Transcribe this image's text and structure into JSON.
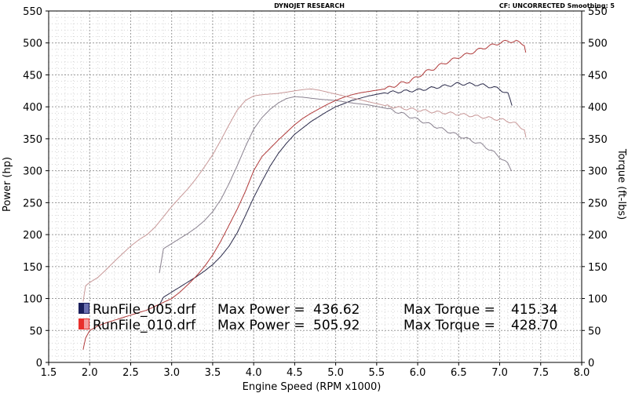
{
  "chart_data": {
    "type": "line",
    "header_center": "DYNOJET RESEARCH",
    "header_right": "CF: UNCORRECTED  Smoothing: 5",
    "xlabel": "Engine Speed (RPM x1000)",
    "ylabel_left": "Power (hp)",
    "ylabel_right": "Torque (ft-lbs)",
    "xlim": [
      1.5,
      8.0
    ],
    "ylim": [
      0,
      550
    ],
    "x_ticks": [
      "1.5",
      "2.0",
      "2.5",
      "3.0",
      "3.5",
      "4.0",
      "4.5",
      "5.0",
      "5.5",
      "6.0",
      "6.5",
      "7.0",
      "7.5",
      "8.0"
    ],
    "y_ticks": [
      "0",
      "50",
      "100",
      "150",
      "200",
      "250",
      "300",
      "350",
      "400",
      "450",
      "500",
      "550"
    ],
    "grid": true,
    "legend": [
      {
        "file": "RunFile_005.drf",
        "power_label": "Max Power =",
        "power_value": "436.62",
        "torque_label": "Max Torque =",
        "torque_value": "415.34",
        "color": "#1a1f5c"
      },
      {
        "file": "RunFile_010.drf",
        "power_label": "Max Power =",
        "power_value": "505.92",
        "torque_label": "Max Torque =",
        "torque_value": "428.70",
        "color": "#e8302c"
      }
    ],
    "series": [
      {
        "color": "#2a2a4a",
        "width": 1,
        "x": [
          2.85,
          2.9,
          3.0,
          3.1,
          3.2,
          3.3,
          3.4,
          3.5,
          3.6,
          3.7,
          3.8,
          3.9,
          4.0,
          4.1,
          4.2,
          4.3,
          4.4,
          4.5,
          4.6,
          4.7,
          4.8,
          4.9,
          5.0,
          5.2,
          5.4,
          5.6,
          5.8,
          6.0,
          6.2,
          6.4,
          6.5,
          6.6,
          6.8,
          7.0,
          7.1,
          7.15
        ],
        "y": [
          90,
          102,
          110,
          118,
          126,
          134,
          143,
          153,
          166,
          182,
          203,
          230,
          258,
          283,
          307,
          327,
          343,
          357,
          367,
          377,
          385,
          393,
          400,
          410,
          417,
          422,
          424,
          426,
          430,
          434,
          436,
          436,
          434,
          428,
          420,
          402
        ]
      },
      {
        "color": "#8a8290",
        "width": 1,
        "x": [
          2.85,
          2.9,
          3.0,
          3.1,
          3.2,
          3.3,
          3.4,
          3.5,
          3.6,
          3.7,
          3.8,
          3.9,
          4.0,
          4.1,
          4.2,
          4.3,
          4.4,
          4.5,
          4.6,
          4.8,
          5.0,
          5.2,
          5.4,
          5.6,
          5.8,
          6.0,
          6.2,
          6.4,
          6.6,
          6.8,
          7.0,
          7.1,
          7.15
        ],
        "y": [
          140,
          178,
          186,
          194,
          202,
          211,
          222,
          236,
          255,
          280,
          308,
          338,
          365,
          383,
          396,
          406,
          413,
          416,
          415,
          412,
          410,
          406,
          403,
          398,
          390,
          380,
          370,
          360,
          350,
          340,
          322,
          310,
          300
        ]
      },
      {
        "color": "#b03a3a",
        "width": 1,
        "x": [
          1.92,
          1.95,
          2.0,
          2.1,
          2.2,
          2.3,
          2.4,
          2.5,
          2.6,
          2.7,
          2.8,
          2.9,
          3.0,
          3.1,
          3.2,
          3.3,
          3.4,
          3.5,
          3.6,
          3.7,
          3.8,
          3.9,
          4.0,
          4.1,
          4.2,
          4.3,
          4.4,
          4.5,
          4.6,
          4.7,
          4.8,
          4.9,
          5.0,
          5.1,
          5.2,
          5.3,
          5.4,
          5.5,
          5.6,
          5.7,
          5.8,
          5.9,
          6.0,
          6.1,
          6.2,
          6.3,
          6.4,
          6.5,
          6.6,
          6.7,
          6.8,
          6.9,
          7.0,
          7.1,
          7.2,
          7.3,
          7.32
        ],
        "y": [
          20,
          38,
          50,
          57,
          62,
          66,
          70,
          74,
          78,
          82,
          88,
          94,
          100,
          110,
          122,
          135,
          150,
          168,
          190,
          215,
          240,
          268,
          300,
          322,
          335,
          348,
          360,
          372,
          382,
          390,
          397,
          404,
          410,
          415,
          419,
          422,
          424,
          426,
          428,
          432,
          437,
          440,
          447,
          455,
          460,
          467,
          472,
          478,
          482,
          487,
          492,
          496,
          500,
          503,
          502,
          498,
          485
        ]
      },
      {
        "color": "#c89898",
        "width": 1,
        "x": [
          1.92,
          1.95,
          2.0,
          2.1,
          2.2,
          2.3,
          2.4,
          2.5,
          2.6,
          2.7,
          2.8,
          2.9,
          3.0,
          3.1,
          3.2,
          3.3,
          3.4,
          3.5,
          3.6,
          3.7,
          3.8,
          3.9,
          4.0,
          4.1,
          4.2,
          4.3,
          4.4,
          4.5,
          4.6,
          4.7,
          4.8,
          5.0,
          5.2,
          5.4,
          5.6,
          5.8,
          6.0,
          6.2,
          6.4,
          6.6,
          6.8,
          7.0,
          7.1,
          7.2,
          7.3,
          7.32
        ],
        "y": [
          95,
          120,
          125,
          133,
          145,
          158,
          170,
          182,
          192,
          200,
          212,
          228,
          244,
          258,
          272,
          288,
          306,
          325,
          348,
          372,
          395,
          410,
          417,
          419,
          420,
          421,
          423,
          425,
          427,
          428,
          426,
          420,
          414,
          408,
          402,
          398,
          395,
          392,
          390,
          387,
          384,
          380,
          378,
          373,
          365,
          352
        ]
      }
    ]
  }
}
